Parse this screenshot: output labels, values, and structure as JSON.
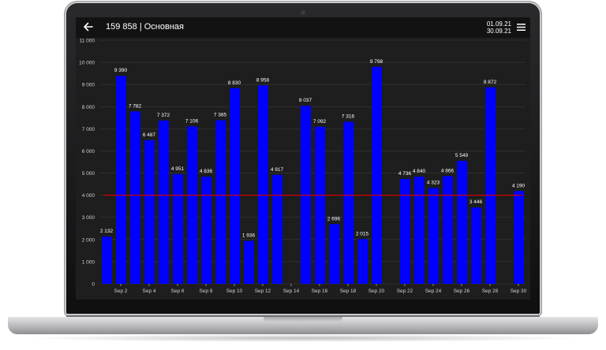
{
  "header": {
    "title": "159 858 | Основная",
    "date_from": "01.09.21",
    "date_to": "30.09.21"
  },
  "colors": {
    "bar": "#0000ff",
    "threshold": "#cc0000",
    "background": "#1e1e1e",
    "grid": "#3a3a3a",
    "text": "#ffffff",
    "tick_text": "#d0d0d0"
  },
  "chart_data": {
    "type": "bar",
    "days": [
      1,
      2,
      3,
      4,
      5,
      6,
      7,
      8,
      9,
      10,
      11,
      12,
      13,
      14,
      15,
      16,
      17,
      18,
      19,
      20,
      21,
      22,
      23,
      24,
      25,
      26,
      27,
      28,
      29,
      30
    ],
    "values": [
      2132,
      9390,
      7782,
      6487,
      7372,
      4951,
      7106,
      4836,
      7385,
      8830,
      1936,
      8958,
      4917,
      null,
      8037,
      7092,
      2696,
      7316,
      2015,
      9798,
      null,
      4736,
      4840,
      4323,
      4866,
      5549,
      3446,
      8872,
      null,
      4190
    ],
    "value_labels": [
      "2 132",
      "9 390",
      "7 782",
      "6 487",
      "7 372",
      "4 951",
      "7 106",
      "4 836",
      "7 385",
      "8 830",
      "1 936",
      "8 958",
      "4 917",
      "",
      "8 037",
      "7 092",
      "2 696",
      "7 316",
      "2 015",
      "9 798",
      "",
      "4 736",
      "4 840",
      "4 323",
      "4 866",
      "5 549",
      "3 446",
      "8 872",
      "",
      "4 190"
    ],
    "x_tick_labels": [
      "Sep 2",
      "Sep 4",
      "Sep 6",
      "Sep 8",
      "Sep 10",
      "Sep 12",
      "Sep 14",
      "Sep 16",
      "Sep 18",
      "Sep 20",
      "Sep 22",
      "Sep 24",
      "Sep 26",
      "Sep 28",
      "Sep 30"
    ],
    "x_tick_days": [
      2,
      4,
      6,
      8,
      10,
      12,
      14,
      16,
      18,
      20,
      22,
      24,
      26,
      28,
      30
    ],
    "y_tick_values": [
      0,
      1000,
      2000,
      3000,
      4000,
      5000,
      6000,
      7000,
      8000,
      9000,
      10000,
      11000
    ],
    "y_tick_labels": [
      "0",
      "1 000",
      "2 000",
      "3 000",
      "4 000",
      "5 000",
      "6 000",
      "7 000",
      "8 000",
      "9 000",
      "10 000",
      "11 000"
    ],
    "ylim": [
      0,
      11000
    ],
    "threshold": 4000,
    "grid": true,
    "legend": "none"
  }
}
